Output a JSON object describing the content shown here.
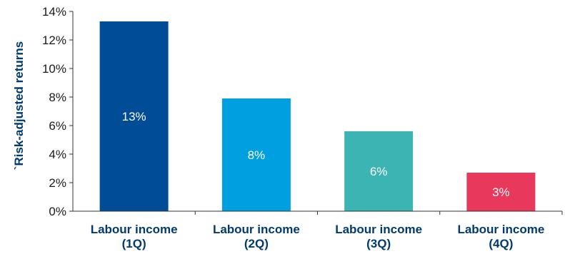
{
  "chart_data": {
    "type": "bar",
    "ylabel": "`Risk-adjusted returns",
    "ylim": [
      0,
      14
    ],
    "yticks": [
      0,
      2,
      4,
      6,
      8,
      10,
      12,
      14
    ],
    "ytick_labels": [
      "0%",
      "2%",
      "4%",
      "6%",
      "8%",
      "10%",
      "12%",
      "14%"
    ],
    "categories": [
      [
        "Labour income",
        "(1Q)"
      ],
      [
        "Labour income",
        "(2Q)"
      ],
      [
        "Labour income",
        "(3Q)"
      ],
      [
        "Labour income",
        "(4Q)"
      ]
    ],
    "values": [
      13.3,
      7.9,
      5.6,
      2.7
    ],
    "data_labels": [
      "13%",
      "8%",
      "6%",
      "3%"
    ],
    "colors": [
      "#004c97",
      "#009fdf",
      "#3cb4b4",
      "#e8385b"
    ],
    "grid": false,
    "legend": "none"
  }
}
